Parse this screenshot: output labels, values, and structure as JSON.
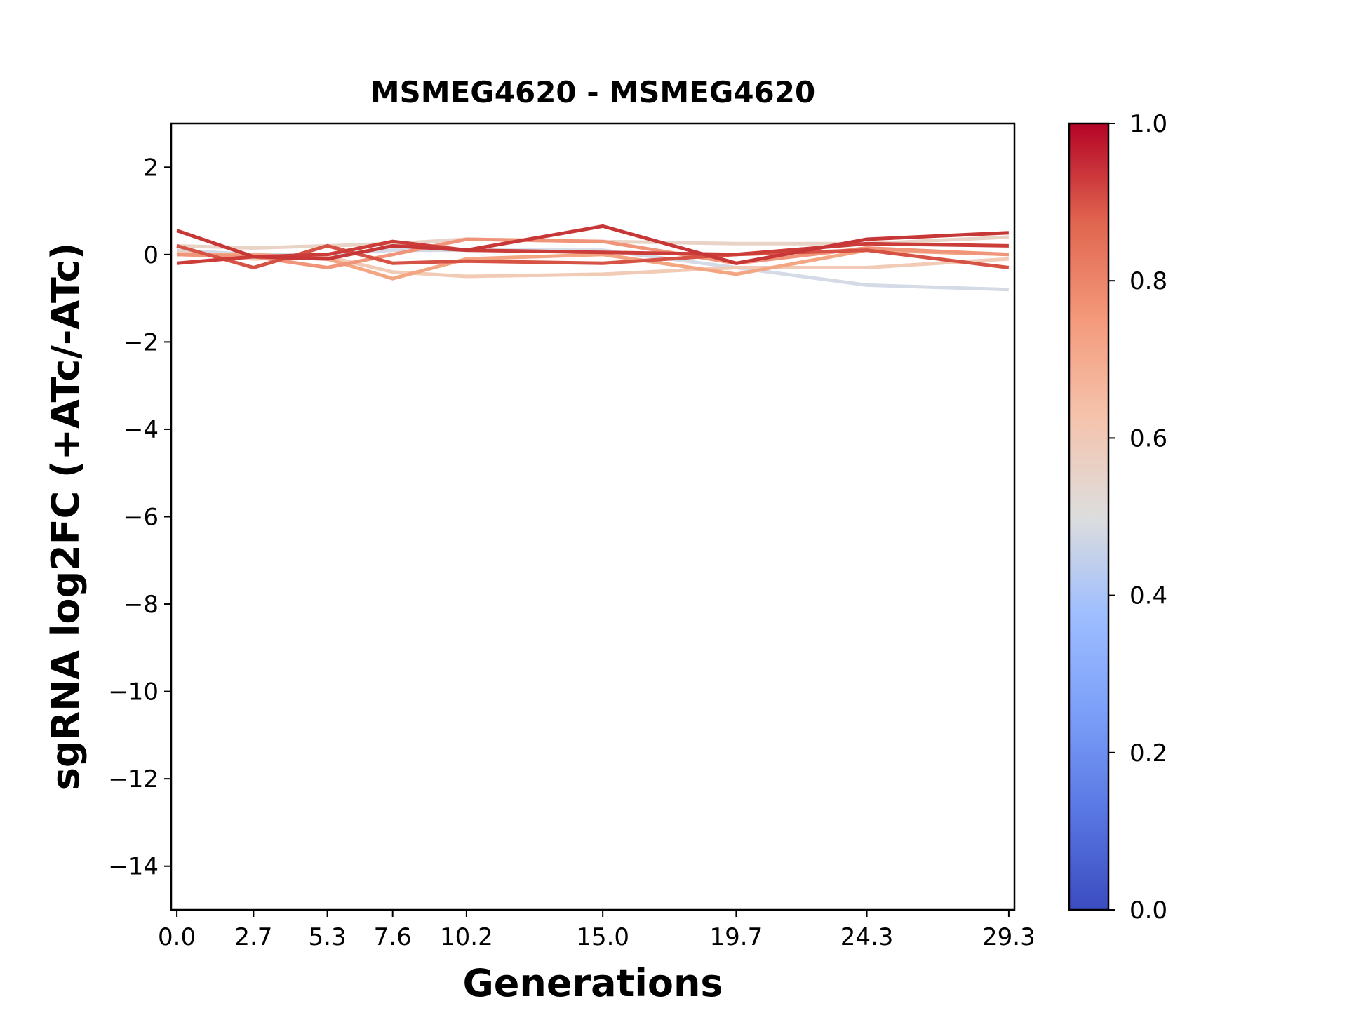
{
  "chart_data": {
    "type": "line",
    "title": "MSMEG4620 - MSMEG4620",
    "xlabel": "Generations",
    "ylabel": "sgRNA log2FC (+ATc/-ATc)",
    "x": [
      0.0,
      2.7,
      5.3,
      7.6,
      10.2,
      15.0,
      19.7,
      24.3,
      29.3
    ],
    "xticks": [
      "0.0",
      "2.7",
      "5.3",
      "7.6",
      "10.2",
      "15.0",
      "19.7",
      "24.3",
      "29.3"
    ],
    "xlim": [
      -0.2,
      29.5
    ],
    "ylim": [
      -15,
      3
    ],
    "yticks": [
      2,
      0,
      -2,
      -4,
      -6,
      -8,
      -10,
      -12,
      -14
    ],
    "ytick_labels": [
      "2",
      "0",
      "−2",
      "−4",
      "−6",
      "−8",
      "−10",
      "−12",
      "−14"
    ],
    "grid": false,
    "colormap": "coolwarm",
    "colorbar": {
      "range": [
        0,
        1
      ],
      "ticks": [
        "0.0",
        "0.2",
        "0.4",
        "0.6",
        "0.8",
        "1.0"
      ]
    },
    "series": [
      {
        "color_value": 0.45,
        "color": "#d4dae6",
        "values": [
          0.1,
          0.0,
          0.0,
          0.1,
          0.1,
          0.1,
          -0.3,
          -0.7,
          -0.8
        ]
      },
      {
        "color_value": 0.58,
        "color": "#e8d3c6",
        "values": [
          0.2,
          0.15,
          0.2,
          0.25,
          0.35,
          0.3,
          0.25,
          0.25,
          0.4
        ]
      },
      {
        "color_value": 0.62,
        "color": "#f2cbb7",
        "values": [
          0.05,
          -0.1,
          -0.05,
          -0.4,
          -0.5,
          -0.45,
          -0.3,
          -0.3,
          -0.1
        ]
      },
      {
        "color_value": 0.72,
        "color": "#f4a582",
        "values": [
          0.0,
          0.0,
          -0.1,
          -0.55,
          -0.1,
          0.0,
          -0.45,
          0.1,
          0.0
        ]
      },
      {
        "color_value": 0.76,
        "color": "#f0957a",
        "values": [
          0.0,
          -0.05,
          -0.3,
          0.0,
          0.35,
          0.3,
          -0.2,
          0.15,
          0.0
        ]
      },
      {
        "color_value": 0.88,
        "color": "#d65244",
        "values": [
          0.2,
          -0.3,
          0.2,
          -0.2,
          -0.15,
          -0.2,
          0.0,
          0.1,
          -0.3
        ]
      },
      {
        "color_value": 0.9,
        "color": "#cc3d3a",
        "values": [
          -0.2,
          -0.05,
          0.0,
          0.3,
          0.1,
          0.05,
          0.0,
          0.25,
          0.2
        ]
      },
      {
        "color_value": 0.9,
        "color": "#c83737",
        "values": [
          0.55,
          -0.05,
          -0.1,
          0.2,
          0.1,
          0.65,
          -0.2,
          0.35,
          0.5
        ]
      }
    ]
  }
}
